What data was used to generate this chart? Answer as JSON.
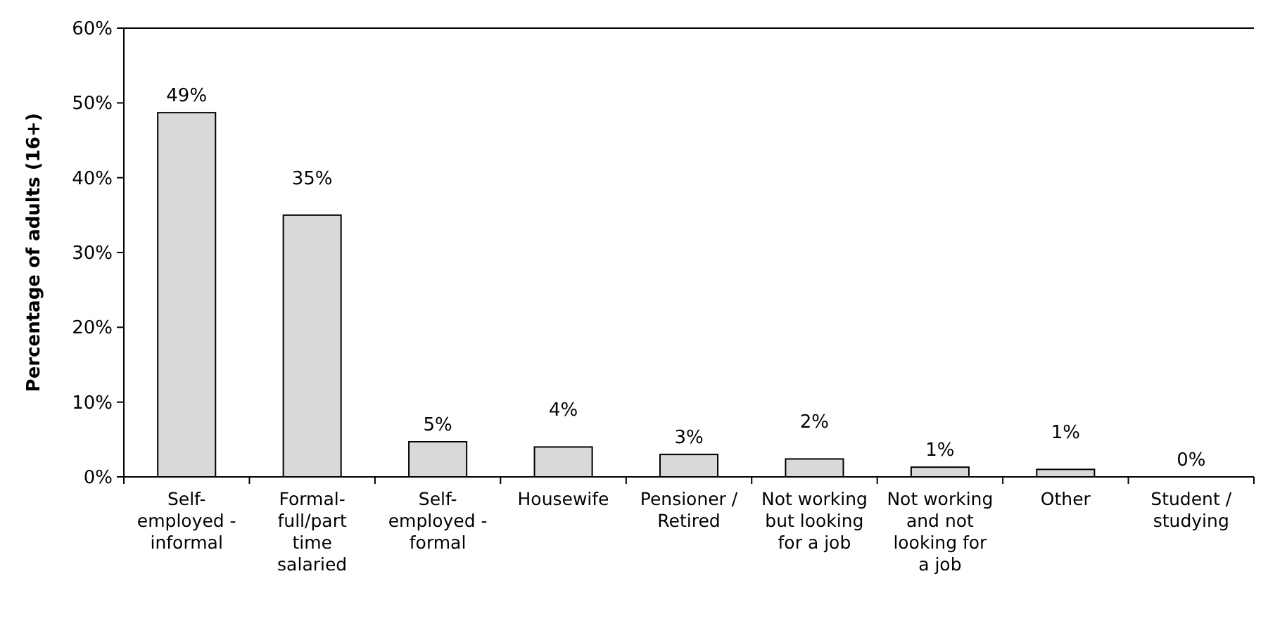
{
  "chart_data": {
    "type": "bar",
    "ylabel": "Percentage of adults (16+)",
    "categories": [
      "Self-employed - informal",
      "Formal-full/part time salaried",
      "Self-employed - formal",
      "Housewife",
      "Pensioner / Retired",
      "Not working but looking for a job",
      "Not working and not looking for a job",
      "Other",
      "Student / studying"
    ],
    "values": [
      48.7,
      35,
      4.7,
      4,
      3,
      2.4,
      1.3,
      1,
      0
    ],
    "value_labels": [
      "49%",
      "35%",
      "5%",
      "4%",
      "3%",
      "2%",
      "1%",
      "1%",
      "0%"
    ],
    "color": "#d9d9d9",
    "ylim": [
      0,
      60
    ],
    "yticks": [
      {
        "value": 0,
        "label": "0%"
      },
      {
        "value": 10,
        "label": "10%"
      },
      {
        "value": 20,
        "label": "20%"
      },
      {
        "value": 30,
        "label": "30%"
      },
      {
        "value": 40,
        "label": "40%"
      },
      {
        "value": 50,
        "label": "50%"
      },
      {
        "value": 60,
        "label": "60%"
      }
    ],
    "grid": false
  }
}
